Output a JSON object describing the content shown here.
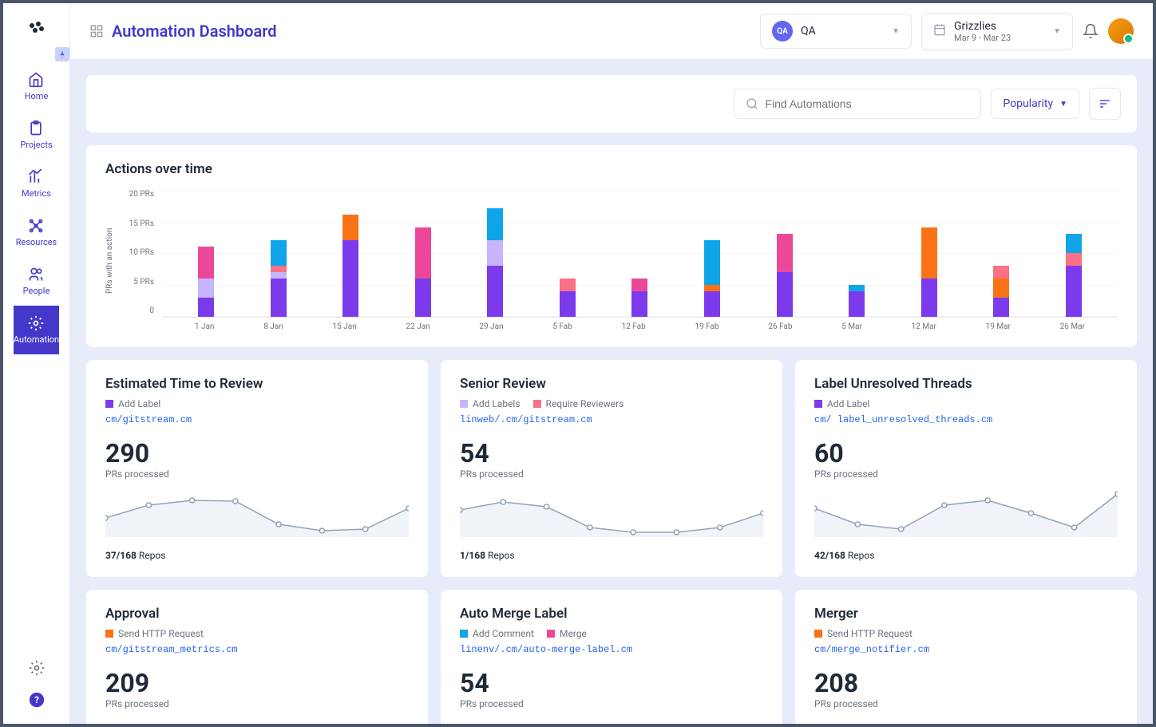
{
  "page_title": "Automation Dashboard",
  "sidebar": {
    "items": [
      {
        "id": "home",
        "label": "Home"
      },
      {
        "id": "projects",
        "label": "Projects"
      },
      {
        "id": "metrics",
        "label": "Metrics"
      },
      {
        "id": "resources",
        "label": "Resources"
      },
      {
        "id": "people",
        "label": "People"
      },
      {
        "id": "automation",
        "label": "Automation"
      }
    ],
    "active": "automation"
  },
  "header": {
    "org_selector": {
      "badge": "QA",
      "label": "QA"
    },
    "date_selector": {
      "title": "Grizzlies",
      "range": "Mar 9 - Mar 23"
    }
  },
  "toolbar": {
    "search_placeholder": "Find Automations",
    "sort_label": "Popularity"
  },
  "actions_chart": {
    "title": "Actions over time",
    "y_axis_label": "PRs with an action",
    "y_max": 20,
    "y_ticks": [
      "20 PRs",
      "15 PRs",
      "10 PRs",
      "5 PRs",
      "0"
    ],
    "x_labels": [
      "1 Jan",
      "8 Jan",
      "15 Jan",
      "22 Jan",
      "29 Jan",
      "5 Fab",
      "12 Fab",
      "19 Fab",
      "26 Fab",
      "5 Mar",
      "12 Mar",
      "19 Mar",
      "26 Mar"
    ],
    "grid_color": "#f3f4f6",
    "colors": {
      "purple": "#7c3aed",
      "lavender": "#c4b5fd",
      "pink": "#ec4899",
      "orange": "#f97316",
      "red": "#fb7185",
      "teal": "#0ea5e9"
    },
    "stacks": [
      [
        {
          "c": "purple",
          "v": 3
        },
        {
          "c": "lavender",
          "v": 3
        },
        {
          "c": "pink",
          "v": 5
        }
      ],
      [
        {
          "c": "purple",
          "v": 6
        },
        {
          "c": "lavender",
          "v": 1
        },
        {
          "c": "red",
          "v": 1
        },
        {
          "c": "teal",
          "v": 4
        }
      ],
      [
        {
          "c": "purple",
          "v": 12
        },
        {
          "c": "orange",
          "v": 4
        }
      ],
      [
        {
          "c": "purple",
          "v": 6
        },
        {
          "c": "pink",
          "v": 8
        }
      ],
      [
        {
          "c": "purple",
          "v": 8
        },
        {
          "c": "lavender",
          "v": 4
        },
        {
          "c": "teal",
          "v": 5
        }
      ],
      [
        {
          "c": "purple",
          "v": 4
        },
        {
          "c": "red",
          "v": 2
        }
      ],
      [
        {
          "c": "purple",
          "v": 4
        },
        {
          "c": "pink",
          "v": 2
        }
      ],
      [
        {
          "c": "purple",
          "v": 4
        },
        {
          "c": "orange",
          "v": 1
        },
        {
          "c": "teal",
          "v": 7
        }
      ],
      [
        {
          "c": "purple",
          "v": 7
        },
        {
          "c": "pink",
          "v": 6
        }
      ],
      [
        {
          "c": "purple",
          "v": 4
        },
        {
          "c": "teal",
          "v": 1
        }
      ],
      [
        {
          "c": "purple",
          "v": 6
        },
        {
          "c": "orange",
          "v": 8
        }
      ],
      [
        {
          "c": "purple",
          "v": 3
        },
        {
          "c": "orange",
          "v": 3
        },
        {
          "c": "red",
          "v": 2
        }
      ],
      [
        {
          "c": "purple",
          "v": 8
        },
        {
          "c": "red",
          "v": 2
        },
        {
          "c": "teal",
          "v": 3
        }
      ]
    ]
  },
  "cards": [
    {
      "title": "Estimated Time to Review",
      "tags": [
        {
          "color": "#7c3aed",
          "label": "Add Label"
        }
      ],
      "path": "cm/gitstream.cm",
      "metric": "290",
      "metric_label": "PRs processed",
      "footer_bold": "37/168",
      "footer_rest": " Repos",
      "spark": [
        36,
        20,
        14,
        15,
        44,
        52,
        50,
        24
      ]
    },
    {
      "title": "Senior Review",
      "tags": [
        {
          "color": "#c4b5fd",
          "label": "Add Labels"
        },
        {
          "color": "#fb7185",
          "label": "Require Reviewers"
        }
      ],
      "path": "linweb/.cm/gitstream.cm",
      "metric": "54",
      "metric_label": "PRs processed",
      "footer_bold": "1/168",
      "footer_rest": " Repos",
      "spark": [
        26,
        16,
        22,
        48,
        54,
        54,
        48,
        30
      ]
    },
    {
      "title": "Label Unresolved Threads",
      "tags": [
        {
          "color": "#7c3aed",
          "label": "Add Label"
        }
      ],
      "path": "cm/ label_unresolved_threads.cm",
      "metric": "60",
      "metric_label": "PRs processed",
      "footer_bold": "42/168",
      "footer_rest": " Repos",
      "spark": [
        24,
        44,
        50,
        20,
        14,
        30,
        48,
        6
      ]
    },
    {
      "title": "Approval",
      "tags": [
        {
          "color": "#f97316",
          "label": "Send HTTP Request"
        }
      ],
      "path": "cm/gitstream_metrics.cm",
      "metric": "209",
      "metric_label": "PRs processed",
      "footer_bold": "",
      "footer_rest": "",
      "spark": []
    },
    {
      "title": "Auto Merge Label",
      "tags": [
        {
          "color": "#0ea5e9",
          "label": "Add Comment"
        },
        {
          "color": "#ec4899",
          "label": "Merge"
        }
      ],
      "path": "linenv/.cm/auto-merge-label.cm",
      "metric": "54",
      "metric_label": "PRs processed",
      "footer_bold": "",
      "footer_rest": "",
      "spark": []
    },
    {
      "title": "Merger",
      "tags": [
        {
          "color": "#f97316",
          "label": "Send HTTP Request"
        }
      ],
      "path": "cm/merge_notifier.cm",
      "metric": "208",
      "metric_label": "PRs processed",
      "footer_bold": "",
      "footer_rest": "",
      "spark": []
    }
  ]
}
